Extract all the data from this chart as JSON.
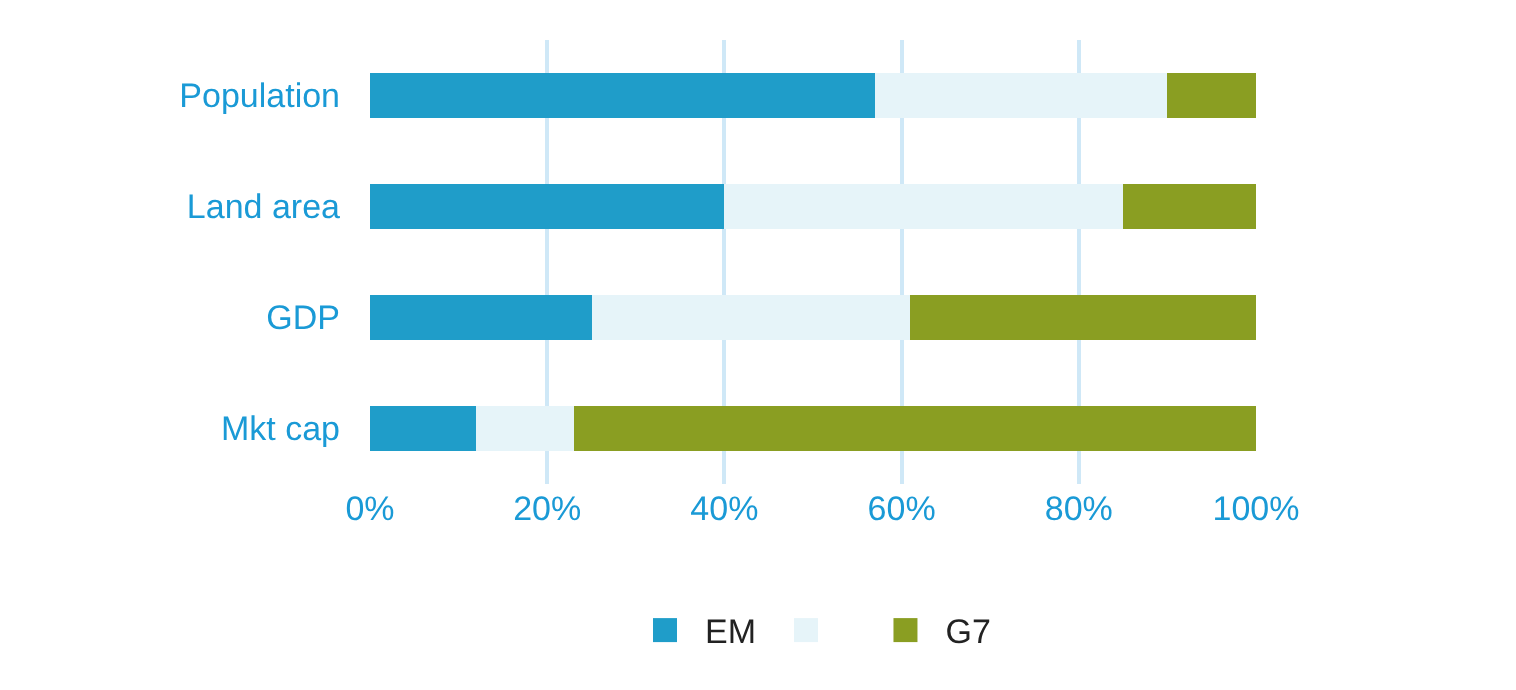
{
  "chart_data": {
    "type": "bar",
    "orientation": "horizontal",
    "stacked": true,
    "categories": [
      "Population",
      "Land area",
      "GDP",
      "Mkt cap"
    ],
    "series": [
      {
        "name": "EM",
        "color": "#1f9dc9",
        "values": [
          57,
          40,
          25,
          12
        ]
      },
      {
        "color": "#e6f4f9",
        "values": [
          33,
          45,
          36,
          11
        ]
      },
      {
        "name": "G7",
        "color": "#8a9e22",
        "values": [
          10,
          15,
          39,
          77
        ]
      }
    ],
    "xlim": [
      0,
      100
    ],
    "xticks": [
      {
        "value": 0,
        "label": "0%"
      },
      {
        "value": 20,
        "label": "20%"
      },
      {
        "value": 40,
        "label": "40%"
      },
      {
        "value": 60,
        "label": "60%"
      },
      {
        "value": 80,
        "label": "80%"
      },
      {
        "value": 100,
        "label": "100%"
      }
    ],
    "grid": "x",
    "legend": "bottom"
  }
}
